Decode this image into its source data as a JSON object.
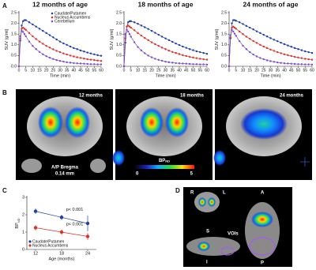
{
  "chart_data": [
    {
      "type": "line",
      "title": "12 months of age",
      "x_label": "Time (min)",
      "y_label": "SUV (g/ml)",
      "x": [
        0,
        1,
        2,
        3,
        4,
        5,
        7.5,
        10,
        12.5,
        15,
        17.5,
        20,
        22.5,
        25,
        27.5,
        30,
        32.5,
        35,
        37.5,
        40,
        42.5,
        45,
        47.5,
        50,
        52.5,
        55,
        57.5,
        60
      ],
      "xlim": [
        0,
        60
      ],
      "ylim": [
        0,
        2.5
      ],
      "xticks": [
        0,
        5,
        10,
        15,
        20,
        25,
        30,
        35,
        40,
        45,
        50,
        55,
        60
      ],
      "yticks": [
        {
          "value": 0,
          "label": "0.0"
        },
        0.5,
        {
          "value": 1,
          "label": "1.0"
        },
        1.5,
        {
          "value": 2,
          "label": "2.0"
        },
        2.5
      ],
      "series": [
        {
          "name": "Caudate/Putamen",
          "color": "#1f3fa8",
          "values": [
            0,
            1.2,
            1.9,
            2.1,
            2.15,
            2.15,
            2.05,
            1.95,
            1.85,
            1.75,
            1.65,
            1.55,
            1.45,
            1.35,
            1.25,
            1.15,
            1.07,
            1.0,
            0.92,
            0.85,
            0.8,
            0.74,
            0.69,
            0.64,
            0.6,
            0.56,
            0.52,
            0.49
          ]
        },
        {
          "name": "Nucleus Accumbens",
          "color": "#e0302a",
          "values": [
            0,
            1.3,
            1.75,
            1.8,
            1.75,
            1.7,
            1.55,
            1.4,
            1.27,
            1.15,
            1.05,
            0.95,
            0.87,
            0.79,
            0.72,
            0.66,
            0.6,
            0.55,
            0.5,
            0.46,
            0.42,
            0.39,
            0.36,
            0.33,
            0.31,
            0.29,
            0.27,
            0.25
          ]
        },
        {
          "name": "Cerebellum",
          "color": "#7b4fd0",
          "values": [
            0,
            1.4,
            1.65,
            1.6,
            1.5,
            1.4,
            1.15,
            0.95,
            0.8,
            0.67,
            0.56,
            0.47,
            0.4,
            0.34,
            0.29,
            0.25,
            0.22,
            0.19,
            0.17,
            0.15,
            0.14,
            0.13,
            0.12,
            0.11,
            0.1,
            0.1,
            0.09,
            0.09
          ]
        }
      ]
    },
    {
      "type": "line",
      "title": "18 months of age",
      "x_label": "Time (min)",
      "y_label": "SUV (g/ml)",
      "x": [
        0,
        1,
        2,
        3,
        4,
        5,
        7.5,
        10,
        12.5,
        15,
        17.5,
        20,
        22.5,
        25,
        27.5,
        30,
        32.5,
        35,
        37.5,
        40,
        42.5,
        45,
        47.5,
        50,
        52.5,
        55,
        57.5,
        60
      ],
      "xlim": [
        0,
        60
      ],
      "ylim": [
        0,
        2.5
      ],
      "xticks": [
        0,
        5,
        10,
        15,
        20,
        25,
        30,
        35,
        40,
        45,
        50,
        55,
        60
      ],
      "yticks": [
        {
          "value": 0,
          "label": "0.0"
        },
        0.5,
        {
          "value": 1,
          "label": "1.0"
        },
        1.5,
        {
          "value": 2,
          "label": "2.0"
        },
        2.5
      ],
      "series": [
        {
          "color": "#1f3fa8",
          "values": [
            0,
            1.1,
            1.85,
            2.05,
            2.1,
            2.1,
            2.05,
            1.98,
            1.9,
            1.82,
            1.74,
            1.65,
            1.56,
            1.47,
            1.38,
            1.3,
            1.22,
            1.14,
            1.06,
            0.99,
            0.92,
            0.86,
            0.8,
            0.75,
            0.7,
            0.66,
            0.62,
            0.58
          ]
        },
        {
          "color": "#e0302a",
          "values": [
            0,
            1.3,
            1.85,
            1.9,
            1.85,
            1.8,
            1.68,
            1.55,
            1.43,
            1.32,
            1.22,
            1.12,
            1.03,
            0.95,
            0.87,
            0.8,
            0.73,
            0.67,
            0.62,
            0.57,
            0.52,
            0.48,
            0.44,
            0.41,
            0.38,
            0.35,
            0.33,
            0.31
          ]
        },
        {
          "color": "#7b4fd0",
          "values": [
            0,
            1.5,
            1.7,
            1.62,
            1.5,
            1.38,
            1.12,
            0.9,
            0.74,
            0.61,
            0.5,
            0.42,
            0.35,
            0.3,
            0.26,
            0.22,
            0.19,
            0.17,
            0.15,
            0.14,
            0.13,
            0.12,
            0.11,
            0.1,
            0.1,
            0.09,
            0.09,
            0.08
          ]
        }
      ]
    },
    {
      "type": "line",
      "title": "24 months of age",
      "x_label": "Time (min)",
      "y_label": "SUV (g/ml)",
      "x": [
        0,
        1,
        2,
        3,
        4,
        5,
        7.5,
        10,
        12.5,
        15,
        17.5,
        20,
        22.5,
        25,
        27.5,
        30,
        32.5,
        35,
        37.5,
        40,
        42.5,
        45,
        47.5,
        50,
        52.5,
        55,
        57.5,
        60
      ],
      "xlim": [
        0,
        60
      ],
      "ylim": [
        0,
        2.5
      ],
      "xticks": [
        0,
        5,
        10,
        15,
        20,
        25,
        30,
        35,
        40,
        45,
        50,
        55,
        60
      ],
      "yticks": [
        {
          "value": 0,
          "label": "0.0"
        },
        0.5,
        {
          "value": 1,
          "label": "1.0"
        },
        1.5,
        {
          "value": 2,
          "label": "2.0"
        },
        2.5
      ],
      "series": [
        {
          "color": "#1f3fa8",
          "values": [
            0,
            1.3,
            2.0,
            2.15,
            2.15,
            2.12,
            2.05,
            1.97,
            1.88,
            1.8,
            1.72,
            1.63,
            1.55,
            1.47,
            1.39,
            1.31,
            1.24,
            1.17,
            1.1,
            1.03,
            0.97,
            0.91,
            0.85,
            0.8,
            0.75,
            0.7,
            0.66,
            0.62
          ]
        },
        {
          "color": "#e0302a",
          "values": [
            0,
            1.35,
            1.8,
            1.85,
            1.8,
            1.75,
            1.62,
            1.5,
            1.38,
            1.28,
            1.18,
            1.09,
            1.0,
            0.92,
            0.85,
            0.78,
            0.72,
            0.66,
            0.61,
            0.56,
            0.52,
            0.48,
            0.44,
            0.41,
            0.38,
            0.35,
            0.33,
            0.31
          ]
        },
        {
          "color": "#7b4fd0",
          "values": [
            0,
            1.45,
            1.7,
            1.62,
            1.52,
            1.42,
            1.17,
            0.96,
            0.8,
            0.66,
            0.55,
            0.46,
            0.39,
            0.33,
            0.28,
            0.24,
            0.21,
            0.18,
            0.16,
            0.14,
            0.13,
            0.12,
            0.11,
            0.1,
            0.1,
            0.09,
            0.09,
            0.08
          ]
        }
      ]
    },
    {
      "type": "line",
      "x_label": "Age (months)",
      "y_label": "BP",
      "y_label_sub": "ND",
      "x": [
        12,
        18,
        24
      ],
      "xlim": [
        10,
        26
      ],
      "ylim": [
        0,
        3
      ],
      "xticks": [
        12,
        18,
        24
      ],
      "yticks": [
        0,
        1,
        2,
        3
      ],
      "annotations": [
        "p< 0.001",
        "p< 0.001"
      ],
      "series": [
        {
          "name": "Caudate/Putamen",
          "color": "#1f3fa8",
          "values": [
            2.2,
            1.85,
            1.5
          ],
          "errors": [
            0.15,
            0.15,
            0.45
          ]
        },
        {
          "name": "Nucleus Accumbens",
          "color": "#e0302a",
          "values": [
            1.25,
            1.0,
            0.75
          ],
          "errors": [
            0.15,
            0.15,
            0.2
          ]
        }
      ]
    }
  ],
  "panel_letters": [
    "A",
    "B",
    "C",
    "D"
  ],
  "panel_b": {
    "images": [
      "12 months",
      "18 months",
      "24 months"
    ],
    "bregma": [
      "A/P Bregma",
      "0.14 mm"
    ],
    "colorbar": {
      "label": "BP",
      "sub": "ND",
      "min": 0,
      "max": 5
    }
  },
  "panel_d": {
    "labels": [
      "R",
      "L",
      "S",
      "I",
      "VOIs",
      "A",
      "P"
    ]
  }
}
